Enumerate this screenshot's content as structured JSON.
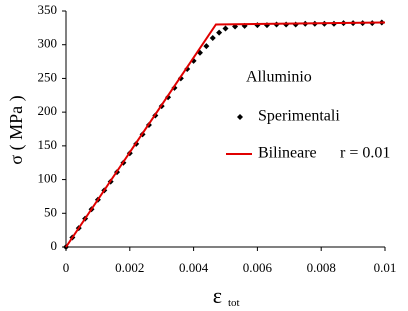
{
  "chart_data": {
    "type": "scatter-line",
    "y_label": "σ ( MPa )",
    "x_label": "ε",
    "x_label_sub": "tot",
    "legend_title": "Alluminio",
    "annotation": "r = 0.01",
    "xlim": [
      0,
      0.01
    ],
    "xticks": [
      0,
      0.002,
      0.004,
      0.006,
      0.008,
      0.01
    ],
    "ylim": [
      0,
      350
    ],
    "yticks": [
      0,
      50,
      100,
      150,
      200,
      250,
      300,
      350
    ],
    "series": [
      {
        "name": "Sperimentali",
        "kind": "scatter",
        "color": "#000000",
        "x": [
          0,
          0.0002,
          0.0004,
          0.0006,
          0.0008,
          0.001,
          0.0012,
          0.0014,
          0.0016,
          0.0018,
          0.002,
          0.0022,
          0.0024,
          0.0026,
          0.0028,
          0.003,
          0.0032,
          0.0034,
          0.0036,
          0.0038,
          0.004,
          0.0042,
          0.0044,
          0.0046,
          0.0048,
          0.005,
          0.0053,
          0.0056,
          0.006,
          0.0063,
          0.0066,
          0.0069,
          0.0072,
          0.0075,
          0.0078,
          0.0081,
          0.0084,
          0.0087,
          0.009,
          0.0093,
          0.0096,
          0.0099
        ],
        "values": [
          0,
          14,
          28,
          42,
          56,
          70,
          84,
          97,
          111,
          125,
          139,
          153,
          167,
          181,
          195,
          209,
          222,
          236,
          250,
          264,
          276,
          288,
          298,
          310,
          318,
          324,
          327,
          328,
          329,
          329,
          330,
          330,
          330,
          331,
          331,
          331,
          331,
          332,
          332,
          332,
          332,
          333
        ]
      },
      {
        "name": "Bilineare",
        "kind": "line",
        "color": "#e00000",
        "x": [
          0,
          0.0047,
          0.01
        ],
        "values": [
          0,
          330,
          333
        ]
      }
    ]
  }
}
